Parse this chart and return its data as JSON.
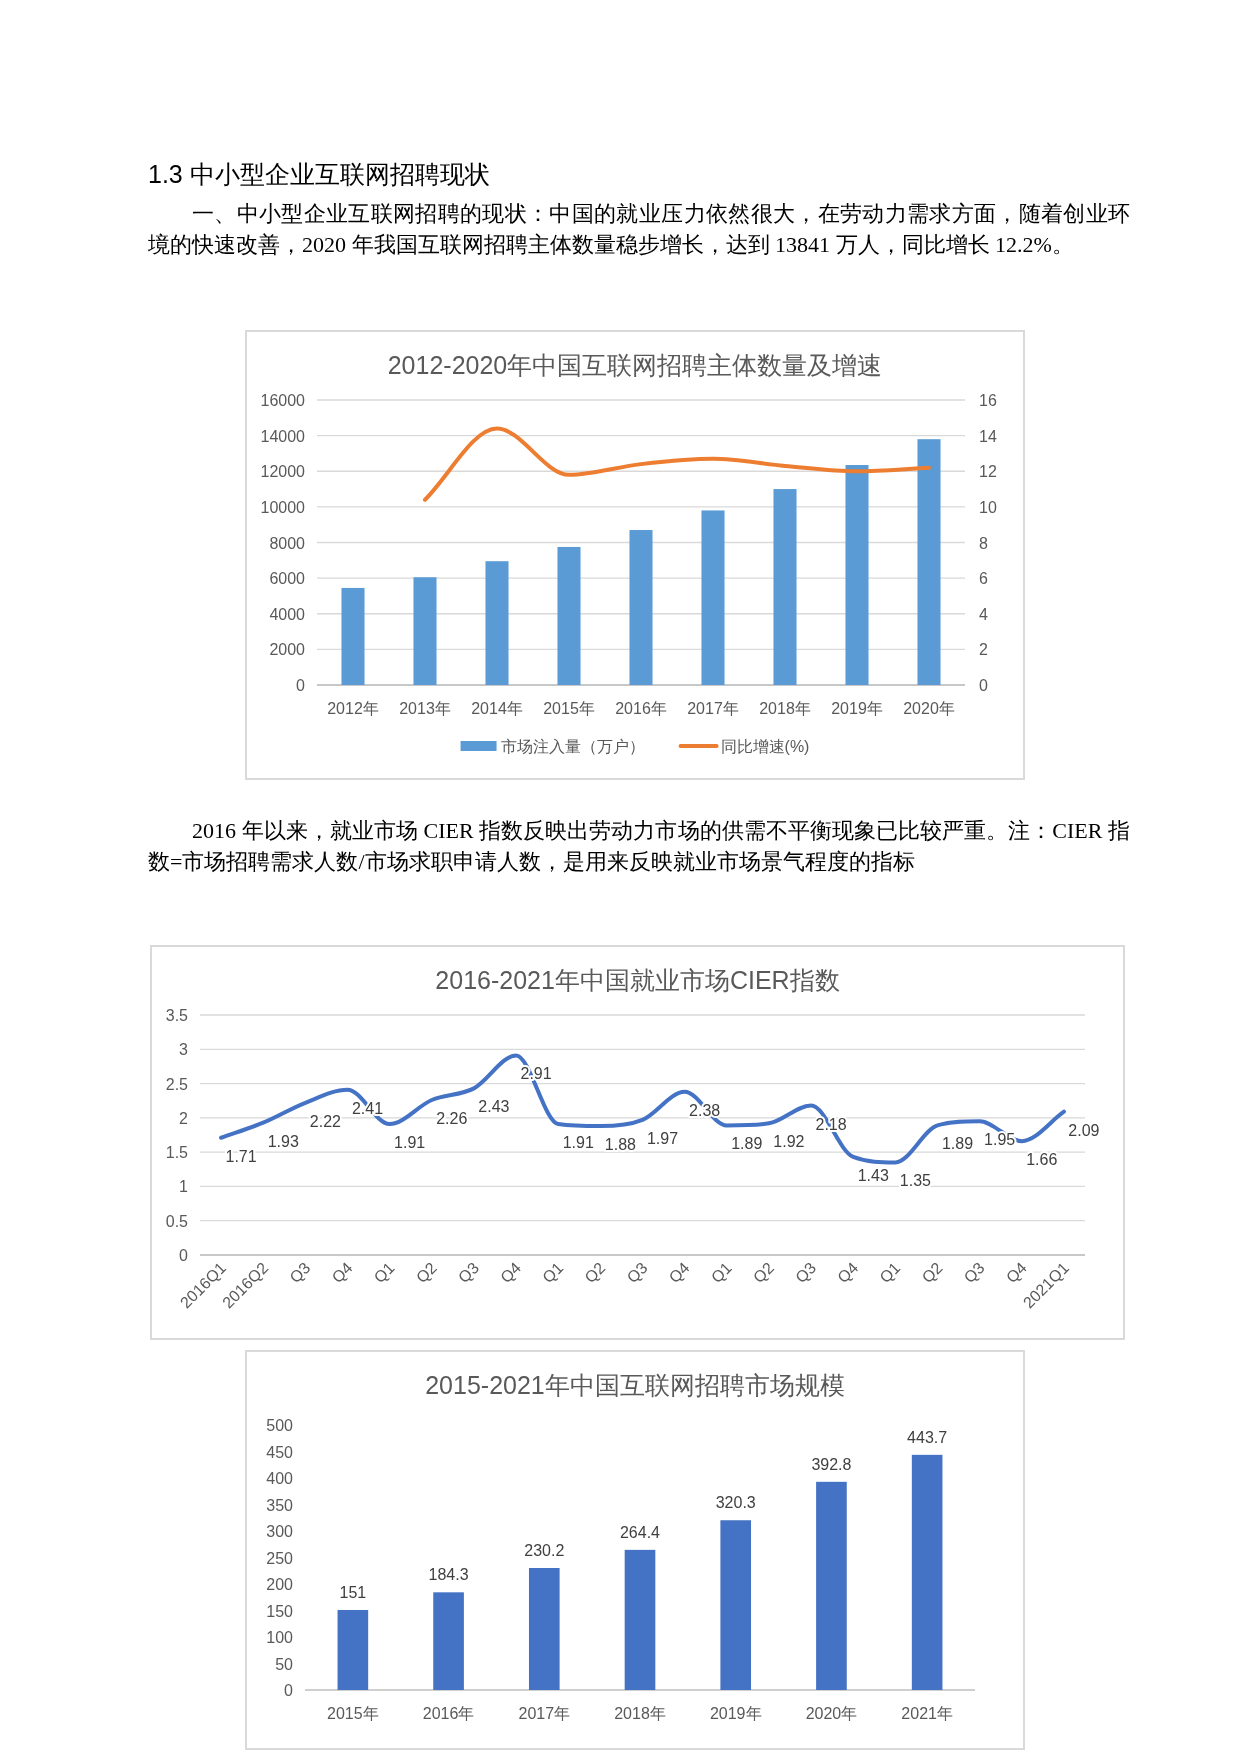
{
  "chart_data": [
    {
      "type": "bar",
      "title": "2012-2020年中国互联网招聘主体数量及增速",
      "annotations": [
        "1.3 中小型企业互联网招聘现状",
        "一、中小型企业互联网招聘的现状：中国的就业压力依然很大，在劳动力需求方面，随着创业环境的快速改善，2020 年我国互联网招聘主体数量稳步增长，达到 13841 万人，同比增长 12.2%。"
      ],
      "categories": [
        "2012年",
        "2013年",
        "2014年",
        "2015年",
        "2016年",
        "2017年",
        "2018年",
        "2019年",
        "2020年"
      ],
      "series": [
        {
          "name": "市场注入量（万户）",
          "color": "#5b9bd5",
          "values": [
            5450,
            6050,
            6950,
            7750,
            8700,
            9800,
            11000,
            12350,
            13800
          ]
        },
        {
          "name": "同比增速(%)",
          "type": "line",
          "axis": "y2",
          "color": "#ed7d31",
          "values": [
            null,
            10.4,
            14.4,
            11.8,
            12.4,
            12.7,
            12.3,
            12.0,
            12.2
          ]
        }
      ],
      "ylim": [
        0,
        16000
      ],
      "yticks": [
        0,
        2000,
        4000,
        6000,
        8000,
        10000,
        12000,
        14000,
        16000
      ],
      "y2lim": [
        0,
        16
      ],
      "y2ticks": [
        0,
        2,
        4,
        6,
        8,
        10,
        12,
        14,
        16
      ],
      "grid": "y",
      "legend": "bottom"
    },
    {
      "type": "line",
      "title": "2016-2021年中国就业市场CIER指数",
      "annotations": [
        "2016 年以来，就业市场 CIER 指数反映出劳动力市场的供需不平衡现象已比较严重。注：CIER 指数=市场招聘需求人数/市场求职申请人数，是用来反映就业市场景气程度的指标"
      ],
      "categories": [
        "2016Q1",
        "2016Q2",
        "Q3",
        "Q4",
        "Q1",
        "Q2",
        "Q3",
        "Q4",
        "Q1",
        "Q2",
        "Q3",
        "Q4",
        "Q1",
        "Q2",
        "Q3",
        "Q4",
        "Q1",
        "Q2",
        "Q3",
        "Q4",
        "2021Q1"
      ],
      "series": [
        {
          "color": "#4472c4",
          "values": [
            1.71,
            1.93,
            2.22,
            2.41,
            1.91,
            2.26,
            2.43,
            2.91,
            1.91,
            1.88,
            1.97,
            2.38,
            1.89,
            1.92,
            2.18,
            1.43,
            1.35,
            1.89,
            1.95,
            1.66,
            2.09
          ]
        }
      ],
      "ylim": [
        0,
        3.5
      ],
      "yticks": [
        0,
        0.5,
        1,
        1.5,
        2,
        2.5,
        3,
        3.5
      ],
      "grid": "y",
      "data_labels": true
    },
    {
      "type": "bar",
      "title": "2015-2021年中国互联网招聘市场规模",
      "categories": [
        "2015年",
        "2016年",
        "2017年",
        "2018年",
        "2019年",
        "2020年",
        "2021年"
      ],
      "values": [
        151,
        184.3,
        230.2,
        264.4,
        320.3,
        392.8,
        443.7
      ],
      "color": "#4472c4",
      "ylim": [
        0,
        500
      ],
      "yticks": [
        0,
        50,
        100,
        150,
        200,
        250,
        300,
        350,
        400,
        450,
        500
      ],
      "data_labels": true
    }
  ]
}
